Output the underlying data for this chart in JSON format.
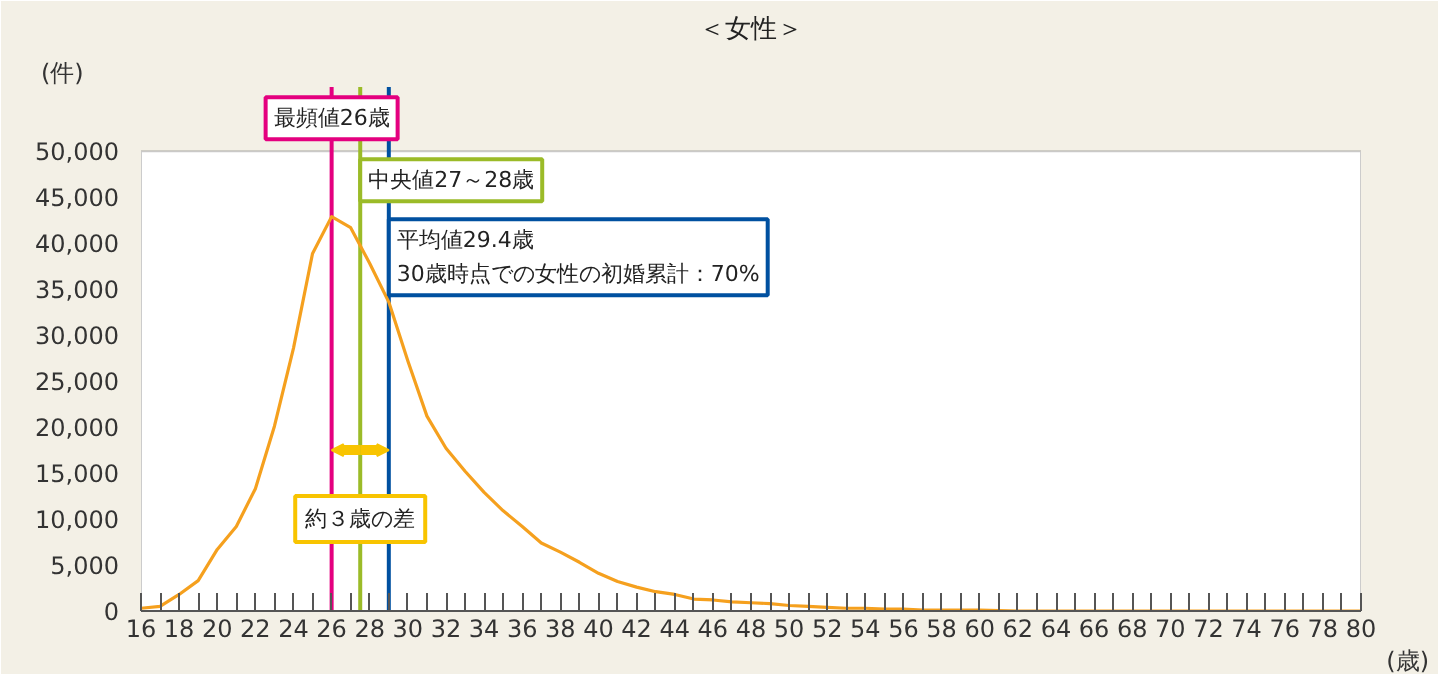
{
  "chart_data": {
    "type": "line",
    "title": "＜女性＞",
    "xlabel": "(歳)",
    "ylabel": "(件)",
    "x": [
      16,
      17,
      18,
      19,
      20,
      21,
      22,
      23,
      24,
      25,
      26,
      27,
      28,
      29,
      30,
      31,
      32,
      33,
      34,
      35,
      36,
      37,
      38,
      39,
      40,
      41,
      42,
      43,
      44,
      45,
      46,
      47,
      48,
      49,
      50,
      51,
      52,
      53,
      54,
      55,
      56,
      57,
      58,
      59,
      60,
      62,
      64,
      66,
      68,
      70,
      72,
      74,
      76,
      78,
      80
    ],
    "series": [
      {
        "color": "#f5a01e",
        "values": [
          300,
          500,
          1800,
          3300,
          6700,
          9200,
          13300,
          20100,
          28600,
          38900,
          42900,
          41700,
          37800,
          33600,
          27200,
          21200,
          17700,
          15200,
          12900,
          10900,
          9200,
          7400,
          6400,
          5300,
          4100,
          3200,
          2600,
          2100,
          1800,
          1300,
          1200,
          1000,
          900,
          800,
          600,
          500,
          400,
          300,
          300,
          200,
          200,
          100,
          100,
          100,
          100,
          0,
          0,
          0,
          0,
          0,
          0,
          0,
          0,
          0,
          0
        ]
      }
    ],
    "xlim": [
      16,
      80
    ],
    "ylim": [
      0,
      50000
    ],
    "xticks": [
      16,
      18,
      20,
      22,
      24,
      26,
      28,
      30,
      32,
      34,
      36,
      38,
      40,
      42,
      44,
      46,
      48,
      50,
      52,
      54,
      56,
      58,
      60,
      62,
      64,
      66,
      68,
      70,
      72,
      74,
      76,
      78,
      80
    ],
    "yticks": [
      0,
      {
        "value": 5000,
        "label": "5,000"
      },
      {
        "value": 10000,
        "label": "10,000"
      },
      {
        "value": 15000,
        "label": "15,000"
      },
      {
        "value": 20000,
        "label": "20,000"
      },
      {
        "value": 25000,
        "label": "25,000"
      },
      {
        "value": 30000,
        "label": "30,000"
      },
      {
        "value": 35000,
        "label": "35,000"
      },
      {
        "value": 40000,
        "label": "40,000"
      },
      {
        "value": 45000,
        "label": "45,000"
      },
      {
        "value": 50000,
        "label": "50,000"
      }
    ],
    "ref_lines": [
      {
        "axis": "x",
        "value": 26,
        "label": "最頻値26歳",
        "color": "#e4007f"
      },
      {
        "axis": "x",
        "value": 27.5,
        "label": "中央値27～28歳",
        "color": "#9bbb28"
      },
      {
        "axis": "x",
        "value": 29,
        "label": "平均値29.4歳\n30歳時点での女性の初婚累計：70%",
        "color": "#0050a0"
      }
    ],
    "annotations": [
      "約３歳の差"
    ],
    "grid": false
  }
}
